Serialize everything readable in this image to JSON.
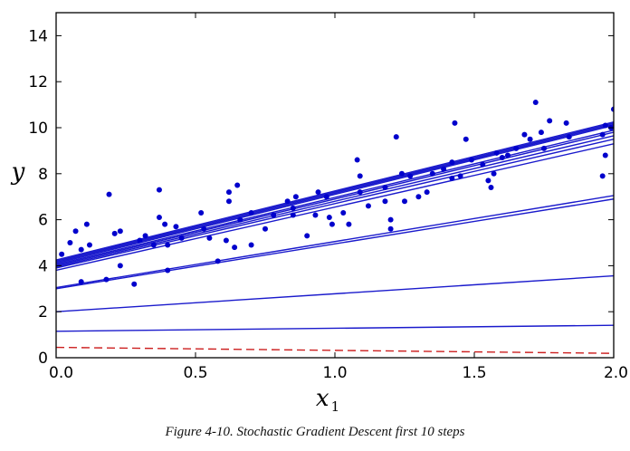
{
  "caption": "Figure 4-10. Stochastic Gradient Descent first 10 steps",
  "chart_data": {
    "type": "scatter",
    "xlabel": "x",
    "xlabel_subscript": "1",
    "ylabel": "y",
    "xlim": [
      0.0,
      2.0
    ],
    "ylim": [
      0,
      15
    ],
    "x_ticks": [
      "0.0",
      "0.5",
      "1.0",
      "1.5",
      "2.0"
    ],
    "x_tick_values": [
      0.0,
      0.5,
      1.0,
      1.5,
      2.0
    ],
    "y_ticks": [
      "0",
      "2",
      "4",
      "6",
      "8",
      "10",
      "12",
      "14"
    ],
    "y_tick_values": [
      0,
      2,
      4,
      6,
      8,
      10,
      12,
      14
    ],
    "grid": false,
    "colors": {
      "points": "#0000cc",
      "lines": "#1a1acc",
      "initial_line": "#cc1f1f",
      "axes": "#000000"
    },
    "points": [
      [
        0.02,
        4.5
      ],
      [
        0.05,
        5.0
      ],
      [
        0.07,
        5.5
      ],
      [
        0.09,
        4.7
      ],
      [
        0.09,
        3.3
      ],
      [
        0.11,
        5.8
      ],
      [
        0.12,
        4.9
      ],
      [
        0.18,
        3.4
      ],
      [
        0.19,
        7.1
      ],
      [
        0.21,
        5.4
      ],
      [
        0.23,
        5.5
      ],
      [
        0.23,
        4.0
      ],
      [
        0.28,
        3.2
      ],
      [
        0.3,
        5.1
      ],
      [
        0.32,
        5.3
      ],
      [
        0.35,
        4.9
      ],
      [
        0.37,
        6.1
      ],
      [
        0.37,
        7.3
      ],
      [
        0.39,
        5.8
      ],
      [
        0.4,
        3.8
      ],
      [
        0.4,
        4.9
      ],
      [
        0.43,
        5.7
      ],
      [
        0.45,
        5.2
      ],
      [
        0.52,
        6.3
      ],
      [
        0.53,
        5.6
      ],
      [
        0.55,
        5.2
      ],
      [
        0.58,
        4.2
      ],
      [
        0.61,
        5.1
      ],
      [
        0.62,
        6.8
      ],
      [
        0.62,
        7.2
      ],
      [
        0.64,
        4.8
      ],
      [
        0.65,
        7.5
      ],
      [
        0.66,
        6.0
      ],
      [
        0.7,
        6.3
      ],
      [
        0.7,
        4.9
      ],
      [
        0.75,
        5.6
      ],
      [
        0.78,
        6.2
      ],
      [
        0.83,
        6.8
      ],
      [
        0.85,
        6.5
      ],
      [
        0.85,
        6.2
      ],
      [
        0.86,
        7.0
      ],
      [
        0.9,
        5.3
      ],
      [
        0.93,
        6.2
      ],
      [
        0.94,
        7.2
      ],
      [
        0.97,
        7.0
      ],
      [
        0.98,
        6.1
      ],
      [
        0.99,
        5.8
      ],
      [
        1.03,
        6.3
      ],
      [
        1.05,
        5.8
      ],
      [
        1.08,
        8.6
      ],
      [
        1.09,
        7.2
      ],
      [
        1.09,
        7.9
      ],
      [
        1.12,
        6.6
      ],
      [
        1.18,
        6.8
      ],
      [
        1.18,
        7.4
      ],
      [
        1.2,
        5.6
      ],
      [
        1.2,
        6.0
      ],
      [
        1.22,
        9.6
      ],
      [
        1.24,
        8.0
      ],
      [
        1.25,
        6.8
      ],
      [
        1.27,
        7.9
      ],
      [
        1.3,
        7.0
      ],
      [
        1.33,
        7.2
      ],
      [
        1.35,
        8.0
      ],
      [
        1.39,
        8.2
      ],
      [
        1.42,
        7.8
      ],
      [
        1.42,
        8.5
      ],
      [
        1.43,
        10.2
      ],
      [
        1.45,
        7.9
      ],
      [
        1.47,
        9.5
      ],
      [
        1.49,
        8.6
      ],
      [
        1.53,
        8.4
      ],
      [
        1.55,
        7.7
      ],
      [
        1.56,
        7.4
      ],
      [
        1.57,
        8.0
      ],
      [
        1.58,
        8.9
      ],
      [
        1.6,
        8.7
      ],
      [
        1.62,
        8.8
      ],
      [
        1.65,
        9.1
      ],
      [
        1.68,
        9.7
      ],
      [
        1.7,
        9.5
      ],
      [
        1.72,
        11.1
      ],
      [
        1.74,
        9.8
      ],
      [
        1.75,
        9.1
      ],
      [
        1.77,
        10.3
      ],
      [
        1.83,
        10.2
      ],
      [
        1.84,
        9.6
      ],
      [
        1.96,
        9.7
      ],
      [
        1.96,
        7.9
      ],
      [
        1.97,
        8.8
      ],
      [
        1.97,
        10.1
      ],
      [
        1.99,
        10.0
      ],
      [
        2.0,
        10.8
      ]
    ],
    "lines": [
      {
        "intercept": 0.45,
        "slope": -0.13,
        "style": "dashed",
        "color": "#cc1f1f"
      },
      {
        "intercept": 1.15,
        "slope": 0.13
      },
      {
        "intercept": 2.0,
        "slope": 0.78
      },
      {
        "intercept": 3.0,
        "slope": 1.95
      },
      {
        "intercept": 3.05,
        "slope": 2.0
      },
      {
        "intercept": 3.8,
        "slope": 2.75
      },
      {
        "intercept": 3.9,
        "slope": 2.8
      },
      {
        "intercept": 3.95,
        "slope": 2.85
      },
      {
        "intercept": 4.0,
        "slope": 2.9
      },
      {
        "intercept": 4.05,
        "slope": 2.92
      },
      {
        "intercept": 4.1,
        "slope": 3.0
      },
      {
        "intercept": 4.15,
        "slope": 3.0
      },
      {
        "intercept": 4.2,
        "slope": 3.0
      },
      {
        "intercept": 4.25,
        "slope": 3.0
      }
    ]
  }
}
